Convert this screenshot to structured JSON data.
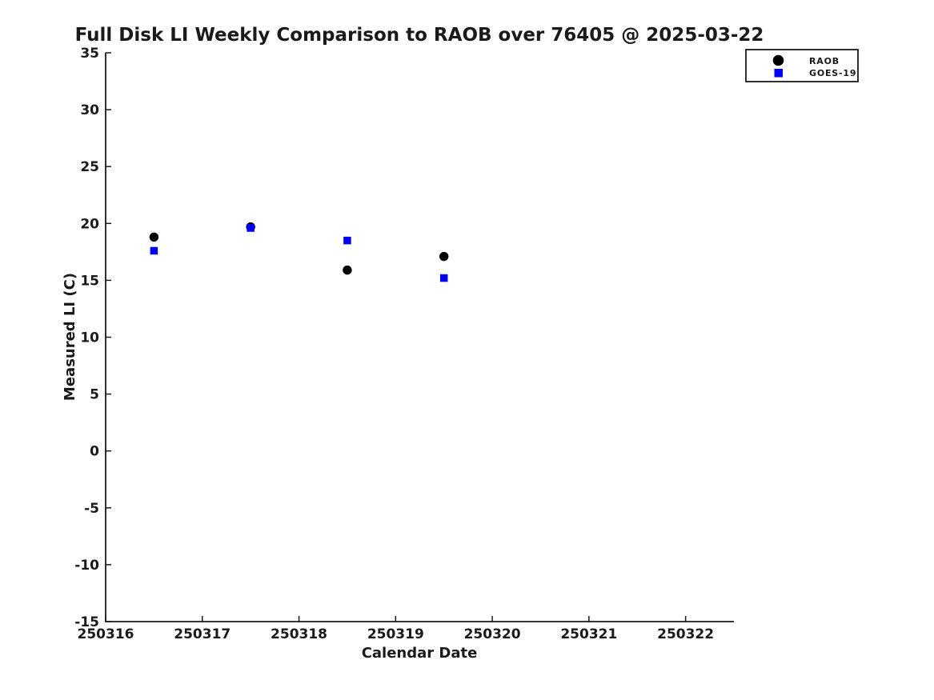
{
  "figure": {
    "background_color": "#ffffff",
    "axis_color": "#1a1a1a",
    "text_color": "#1a1a1a"
  },
  "chart_data": {
    "type": "scatter",
    "title": "Full Disk LI Weekly Comparison to RAOB over 76405 @ 2025-03-22",
    "xlabel": "Calendar Date",
    "ylabel": "Measured LI (C)",
    "xlim": [
      250316,
      250322.5
    ],
    "ylim": [
      -15,
      35
    ],
    "xticks": [
      250316,
      250317,
      250318,
      250319,
      250320,
      250321,
      250322
    ],
    "yticks": [
      -15,
      -10,
      -5,
      0,
      5,
      10,
      15,
      20,
      25,
      30,
      35
    ],
    "grid": false,
    "legend_position": "top-right",
    "series": [
      {
        "name": "RAOB",
        "marker": "circle",
        "color": "#000000",
        "points": [
          [
            250316.5,
            18.8
          ],
          [
            250317.5,
            19.7
          ],
          [
            250318.5,
            15.9
          ],
          [
            250319.5,
            17.1
          ]
        ]
      },
      {
        "name": "GOES-19",
        "marker": "square",
        "color": "#0000ff",
        "points": [
          [
            250316.5,
            17.6
          ],
          [
            250317.5,
            19.6
          ],
          [
            250318.5,
            18.5
          ],
          [
            250319.5,
            15.2
          ]
        ]
      }
    ]
  }
}
